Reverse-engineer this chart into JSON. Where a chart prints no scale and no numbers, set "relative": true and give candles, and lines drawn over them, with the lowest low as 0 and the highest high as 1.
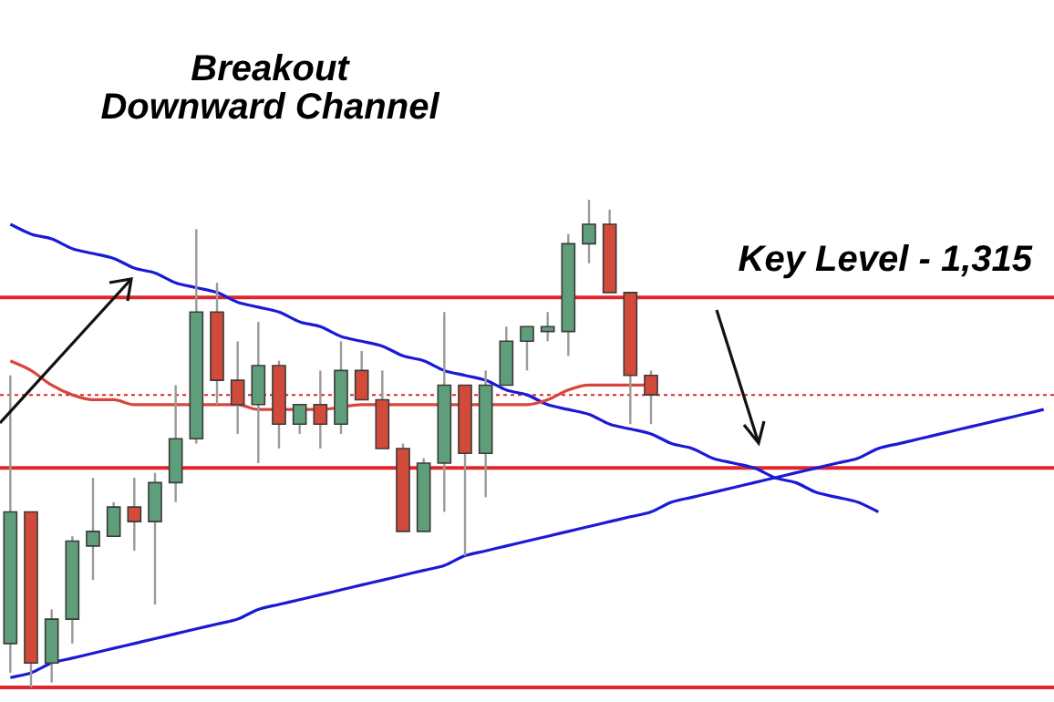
{
  "chart_data": {
    "type": "candlestick",
    "relative": true,
    "tick_labels": false,
    "annotations": [
      "Breakout\nDownward Channel"
    ],
    "categories": [
      null,
      null,
      null,
      null,
      null,
      null,
      null,
      null,
      null,
      null,
      null,
      null,
      null,
      null,
      null,
      null,
      null,
      null,
      null,
      null,
      null,
      null,
      null,
      null,
      null,
      null,
      null,
      null,
      null,
      null,
      null,
      null,
      null,
      null,
      null,
      null,
      null,
      null,
      null,
      null,
      null,
      null,
      null,
      null,
      null,
      null,
      null,
      null,
      null,
      null,
      null
    ],
    "ohlc": [
      [
        0.09,
        0.64,
        0.03,
        0.36
      ],
      [
        0.36,
        0.36,
        0,
        0.05
      ],
      [
        0.05,
        0.16,
        0.01,
        0.14
      ],
      [
        0.14,
        0.31,
        0.09,
        0.3
      ],
      [
        0.29,
        0.43,
        0.22,
        0.32
      ],
      [
        0.31,
        0.38,
        0.31,
        0.37
      ],
      [
        0.37,
        0.43,
        0.28,
        0.34
      ],
      [
        0.34,
        0.44,
        0.17,
        0.42
      ],
      [
        0.42,
        0.62,
        0.38,
        0.51
      ],
      [
        0.51,
        0.94,
        0.5,
        0.77
      ],
      [
        0.77,
        0.83,
        0.58,
        0.63
      ],
      [
        0.63,
        0.71,
        0.52,
        0.58
      ],
      [
        0.58,
        0.75,
        0.46,
        0.66
      ],
      [
        0.66,
        0.67,
        0.49,
        0.54
      ],
      [
        0.54,
        0.58,
        0.52,
        0.58
      ],
      [
        0.58,
        0.65,
        0.49,
        0.54
      ],
      [
        0.54,
        0.71,
        0.52,
        0.65
      ],
      [
        0.65,
        0.69,
        0.59,
        0.59
      ],
      [
        0.59,
        0.65,
        0.49,
        0.49
      ],
      [
        0.49,
        0.5,
        0.32,
        0.32
      ],
      [
        0.32,
        0.47,
        0.32,
        0.46
      ],
      [
        0.46,
        0.77,
        0.36,
        0.62
      ],
      [
        0.62,
        0.62,
        0.27,
        0.48
      ],
      [
        0.48,
        0.65,
        0.39,
        0.62
      ],
      [
        0.62,
        0.74,
        0.62,
        0.71
      ],
      [
        0.71,
        0.74,
        0.65,
        0.74
      ],
      [
        0.73,
        0.77,
        0.71,
        0.74
      ],
      [
        0.73,
        0.93,
        0.68,
        0.91
      ],
      [
        0.91,
        1,
        0.87,
        0.95
      ],
      [
        0.95,
        0.98,
        0.81,
        0.81
      ],
      [
        0.81,
        0.81,
        0.54,
        0.64
      ],
      [
        0.64,
        0.65,
        0.54,
        0.6
      ],
      null,
      null,
      null,
      null,
      null,
      null,
      null,
      null,
      null,
      null,
      null,
      null,
      null,
      null,
      null,
      null,
      null,
      null,
      null
    ],
    "colors": [
      "#5f9e7a",
      "#d24b3a",
      "#5f9e7a",
      "#5f9e7a",
      "#5f9e7a",
      "#5f9e7a",
      "#d24b3a",
      "#5f9e7a",
      "#5f9e7a",
      "#5f9e7a",
      "#d24b3a",
      "#d24b3a",
      "#5f9e7a",
      "#d24b3a",
      "#5f9e7a",
      "#d24b3a",
      "#5f9e7a",
      "#d24b3a",
      "#d24b3a",
      "#d24b3a",
      "#5f9e7a",
      "#5f9e7a",
      "#d24b3a",
      "#5f9e7a",
      "#5f9e7a",
      "#5f9e7a",
      "#5f9e7a",
      "#5f9e7a",
      "#5f9e7a",
      "#d24b3a",
      "#d24b3a",
      "#d24b3a",
      null,
      null,
      null,
      null,
      null,
      null,
      null,
      null,
      null,
      null,
      null,
      null,
      null,
      null,
      null,
      null,
      null,
      null,
      null
    ],
    "series": [
      {
        "type": "line",
        "color": "#d9453a",
        "values": [
          0.67,
          0.65,
          0.62,
          0.6,
          0.59,
          0.59,
          0.58,
          0.58,
          0.58,
          0.58,
          0.58,
          0.58,
          0.57,
          0.57,
          0.57,
          0.57,
          null,
          0.58,
          0.58,
          0.58,
          0.58,
          0.58,
          null,
          0.58,
          0.58,
          0.58,
          0.59,
          0.61,
          0.62,
          0.62,
          0.62,
          0.62,
          null,
          null,
          null,
          null,
          null,
          null,
          null,
          null,
          null,
          null,
          null,
          null,
          null,
          null,
          null,
          null,
          null,
          null,
          null
        ]
      },
      {
        "type": "line",
        "color": "#1a1ad6",
        "values": [
          0.95,
          0.93,
          0.92,
          0.9,
          0.89,
          0.88,
          0.86,
          0.85,
          0.83,
          0.82,
          0.81,
          0.79,
          0.78,
          0.77,
          0.75,
          0.74,
          0.72,
          0.71,
          0.7,
          0.68,
          0.67,
          0.65,
          0.64,
          0.63,
          0.61,
          0.6,
          0.58,
          0.57,
          0.56,
          0.54,
          0.53,
          0.52,
          0.5,
          0.49,
          0.47,
          0.46,
          0.45,
          0.43,
          0.42,
          0.4,
          0.39,
          0.38,
          0.36,
          null,
          null,
          null,
          null,
          null,
          null,
          null,
          null
        ]
      },
      {
        "type": "line",
        "color": "#1a1ad6",
        "values": [
          0.02,
          0.03,
          0.05,
          0.06,
          0.07,
          0.08,
          0.09,
          0.1,
          0.11,
          0.12,
          0.13,
          0.14,
          0.16,
          0.17,
          0.18,
          0.19,
          0.2,
          0.21,
          0.22,
          0.23,
          0.24,
          0.25,
          0.27,
          0.28,
          0.29,
          0.3,
          0.31,
          0.32,
          0.33,
          0.34,
          0.35,
          0.36,
          0.38,
          0.39,
          0.4,
          0.41,
          0.42,
          0.43,
          0.44,
          0.45,
          0.46,
          0.47,
          0.49,
          0.5,
          0.51,
          0.52,
          0.53,
          0.54,
          0.55,
          0.56,
          0.57
        ]
      }
    ],
    "ref_lines": [
      {
        "axis": "y",
        "value": 0.8,
        "label": "Key Level - 1,315",
        "color": "#e0262a"
      },
      {
        "axis": "y",
        "value": 0.45,
        "color": "#e0262a"
      },
      {
        "axis": "y",
        "value": 0,
        "color": "#e0262a"
      },
      {
        "axis": "y",
        "value": 0.6,
        "color": "#e0262a",
        "line_style": "dotted"
      }
    ]
  }
}
